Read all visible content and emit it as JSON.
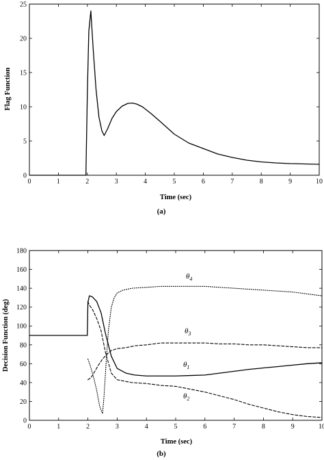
{
  "chart_data": [
    {
      "type": "line",
      "caption": "(a)",
      "xlabel": "Time (sec)",
      "ylabel": "Flag Function",
      "xlim": [
        0,
        10
      ],
      "ylim": [
        0,
        25
      ],
      "xticks": [
        0,
        1,
        2,
        3,
        4,
        5,
        6,
        7,
        8,
        9,
        10
      ],
      "yticks": [
        0,
        5,
        10,
        15,
        20,
        25
      ],
      "grid": false,
      "series": [
        {
          "style": "solid",
          "x": [
            0,
            1.95,
            2.0,
            2.05,
            2.12,
            2.2,
            2.3,
            2.4,
            2.5,
            2.58,
            2.7,
            2.85,
            3.0,
            3.2,
            3.4,
            3.55,
            3.7,
            3.9,
            4.2,
            4.5,
            5.0,
            5.5,
            6.0,
            6.5,
            7.0,
            7.5,
            8.0,
            8.5,
            9.0,
            9.5,
            10.0
          ],
          "y": [
            0,
            0,
            12,
            21,
            24,
            18.5,
            12.5,
            8.5,
            6.5,
            5.8,
            6.8,
            8.3,
            9.3,
            10.1,
            10.5,
            10.55,
            10.4,
            10.0,
            9.0,
            7.9,
            6.0,
            4.7,
            3.9,
            3.1,
            2.6,
            2.2,
            1.95,
            1.8,
            1.7,
            1.65,
            1.6
          ]
        }
      ]
    },
    {
      "type": "line",
      "caption": "(b)",
      "xlabel": "Time (sec)",
      "ylabel": "Decision Function (deg)",
      "xlim": [
        0,
        10
      ],
      "ylim": [
        0,
        180
      ],
      "xticks": [
        0,
        1,
        2,
        3,
        4,
        5,
        6,
        7,
        8,
        9,
        10
      ],
      "yticks": [
        0,
        20,
        40,
        60,
        80,
        100,
        120,
        140,
        160,
        180
      ],
      "grid": false,
      "series": [
        {
          "name": "θ1",
          "style": "solid",
          "x": [
            0,
            1.98,
            2.0,
            2.05,
            2.15,
            2.3,
            2.45,
            2.6,
            2.8,
            3.0,
            3.3,
            3.6,
            4.0,
            4.5,
            5.0,
            5.5,
            6.0,
            6.5,
            7.0,
            7.5,
            8.0,
            8.5,
            9.0,
            9.5,
            10.0
          ],
          "y": [
            90,
            90,
            125,
            132,
            131,
            126,
            114,
            92,
            68,
            55,
            50,
            48,
            47,
            47,
            47,
            47.5,
            48,
            50,
            52,
            54,
            55.5,
            57,
            58.5,
            60,
            61
          ]
        },
        {
          "name": "θ2",
          "style": "dashed",
          "x": [
            2.0,
            2.05,
            2.15,
            2.3,
            2.45,
            2.6,
            2.8,
            3.0,
            3.5,
            4.0,
            4.5,
            5.0,
            5.5,
            6.0,
            6.5,
            7.0,
            7.5,
            8.0,
            8.5,
            9.0,
            9.5,
            10.0
          ],
          "y": [
            126,
            122,
            118,
            108,
            95,
            72,
            50,
            43,
            40,
            39,
            37,
            36,
            33,
            30,
            26,
            22,
            17,
            13,
            9,
            6,
            4,
            3
          ]
        },
        {
          "name": "θ3",
          "style": "dashed",
          "x": [
            2.0,
            2.1,
            2.2,
            2.35,
            2.5,
            2.65,
            2.8,
            3.0,
            3.3,
            3.6,
            4.0,
            4.5,
            5.0,
            5.5,
            6.0,
            6.5,
            7.0,
            7.5,
            8.0,
            8.5,
            9.0,
            9.5,
            10.0
          ],
          "y": [
            43,
            45,
            50,
            58,
            65,
            70,
            74,
            76,
            77,
            79,
            80,
            82,
            82,
            82,
            82,
            81,
            81,
            80,
            80,
            79,
            78,
            77,
            77
          ]
        },
        {
          "name": "θ4",
          "style": "dotted",
          "x": [
            2.0,
            2.08,
            2.2,
            2.3,
            2.4,
            2.5,
            2.55,
            2.62,
            2.7,
            2.8,
            2.9,
            3.0,
            3.2,
            3.5,
            4.0,
            4.5,
            5.0,
            5.5,
            6.0,
            6.5,
            7.0,
            7.5,
            8.0,
            8.5,
            9.0,
            9.5,
            10.0
          ],
          "y": [
            65,
            58,
            45,
            32,
            15,
            7,
            25,
            60,
            95,
            120,
            130,
            135,
            138,
            140,
            141,
            142,
            142,
            142,
            142,
            141,
            140,
            139,
            138,
            137,
            136,
            134,
            132
          ]
        }
      ]
    }
  ]
}
